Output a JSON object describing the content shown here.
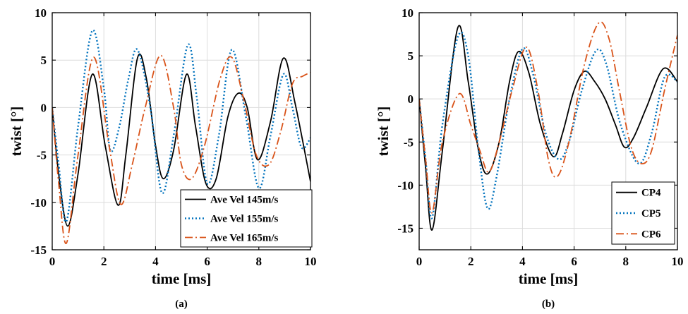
{
  "chart_data": [
    {
      "type": "line",
      "caption": "(a)",
      "xlabel": "time [ms]",
      "ylabel": "twist [°]",
      "xlim": [
        0,
        10
      ],
      "ylim": [
        -15,
        10
      ],
      "xticks": [
        0,
        2,
        4,
        6,
        8,
        10
      ],
      "yticks": [
        -15,
        -10,
        -5,
        0,
        5,
        10
      ],
      "grid": true,
      "legend": "bottom-right",
      "series": [
        {
          "name": "Ave Vel 145m/s",
          "color": "#000000",
          "style": "solid",
          "x": [
            0,
            0.25,
            0.6,
            1.0,
            1.55,
            2.05,
            2.55,
            2.85,
            3.3,
            3.65,
            4.0,
            4.3,
            4.7,
            5.2,
            5.55,
            5.95,
            6.35,
            6.8,
            7.2,
            7.55,
            7.95,
            8.45,
            8.95,
            9.4,
            10.0
          ],
          "y": [
            0,
            -7,
            -12.5,
            -7,
            3.5,
            -4,
            -10.3,
            -5,
            5.2,
            3,
            -4,
            -7.5,
            -4.5,
            3.5,
            -2,
            -8,
            -7.5,
            -1,
            1.5,
            0,
            -5.5,
            -1.5,
            5.2,
            0.5,
            -7.8
          ]
        },
        {
          "name": "Ave Vel 155m/s",
          "color": "#0072bd",
          "style": "dotted",
          "x": [
            0,
            0.25,
            0.55,
            1.0,
            1.55,
            2.0,
            2.25,
            2.6,
            2.95,
            3.3,
            3.8,
            4.25,
            4.7,
            5.25,
            5.6,
            6.0,
            6.45,
            6.95,
            7.5,
            8.0,
            8.45,
            8.95,
            9.3,
            9.65,
            10.0
          ],
          "y": [
            0,
            -6,
            -12,
            -2,
            8.1,
            2,
            -4.5,
            -2,
            3,
            6.1,
            0,
            -9,
            -3,
            6.6,
            1,
            -8,
            -3,
            6.1,
            -1,
            -8.5,
            -3,
            3.5,
            0,
            -4.2,
            -3.2
          ]
        },
        {
          "name": "Ave Vel 165m/s",
          "color": "#d95319",
          "style": "dashdot",
          "x": [
            0,
            0.25,
            0.55,
            1.0,
            1.6,
            2.2,
            2.65,
            3.1,
            3.6,
            4.2,
            4.7,
            5.0,
            5.4,
            5.9,
            6.5,
            6.95,
            7.4,
            7.9,
            8.4,
            8.85,
            9.3,
            9.7,
            10.0
          ],
          "y": [
            0,
            -8,
            -14.3,
            -5,
            5.3,
            -4,
            -10.2,
            -6,
            0,
            5.5,
            0,
            -6,
            -7.5,
            -4,
            3,
            5.3,
            1,
            -5,
            -6,
            -2.5,
            2.5,
            3.3,
            3.7
          ]
        }
      ]
    },
    {
      "type": "line",
      "caption": "(b)",
      "xlabel": "time [ms]",
      "ylabel": "twist [°]",
      "xlim": [
        0,
        10
      ],
      "ylim": [
        -17.5,
        10
      ],
      "xticks": [
        0,
        2,
        4,
        6,
        8,
        10
      ],
      "yticks": [
        -15,
        -10,
        -5,
        0,
        5,
        10
      ],
      "grid": true,
      "legend": "bottom-right",
      "series": [
        {
          "name": "CP4",
          "color": "#000000",
          "style": "solid",
          "x": [
            0,
            0.25,
            0.5,
            0.9,
            1.5,
            1.9,
            2.3,
            2.65,
            3.1,
            3.5,
            3.85,
            4.25,
            4.7,
            5.2,
            5.55,
            6.0,
            6.4,
            6.8,
            7.2,
            7.6,
            7.95,
            8.3,
            8.8,
            9.45,
            10.0
          ],
          "y": [
            0,
            -8,
            -15.2,
            -6,
            8.3,
            2,
            -6,
            -8.7,
            -5,
            2,
            5.5,
            3,
            -3,
            -6.7,
            -4,
            1,
            3.2,
            2,
            0,
            -3,
            -5.6,
            -4.5,
            -1,
            3.5,
            2
          ]
        },
        {
          "name": "CP5",
          "color": "#0072bd",
          "style": "dotted",
          "x": [
            0,
            0.25,
            0.5,
            0.9,
            1.5,
            1.9,
            2.3,
            2.65,
            3.0,
            3.5,
            4.0,
            4.4,
            4.9,
            5.4,
            5.8,
            6.3,
            6.85,
            7.25,
            7.8,
            8.5,
            9.0,
            9.5,
            10.0
          ],
          "y": [
            0,
            -7,
            -13.8,
            -3,
            7.2,
            5,
            -6,
            -12.7,
            -9,
            0,
            5.8,
            3,
            -4,
            -7,
            -5,
            1,
            5.6,
            4,
            -3,
            -7.5,
            -4,
            2.5,
            2
          ]
        },
        {
          "name": "CP6",
          "color": "#d95319",
          "style": "dashdot",
          "x": [
            0,
            0.25,
            0.5,
            0.9,
            1.55,
            2.0,
            2.35,
            2.7,
            3.1,
            3.6,
            4.15,
            4.6,
            5.0,
            5.35,
            5.8,
            6.4,
            6.95,
            7.35,
            7.75,
            8.2,
            8.6,
            9.0,
            9.5,
            10.0
          ],
          "y": [
            0,
            -7,
            -13.2,
            -5,
            0.6,
            -3,
            -6,
            -8.5,
            -5,
            1,
            6,
            1,
            -7,
            -9,
            -5,
            4,
            8.8,
            7,
            1,
            -5.5,
            -7.5,
            -6,
            1,
            7.4
          ]
        }
      ]
    }
  ]
}
